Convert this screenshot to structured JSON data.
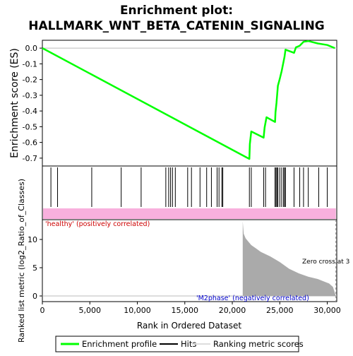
{
  "title_line1": "Enrichment plot:",
  "title_line2": "HALLMARK_WNT_BETA_CATENIN_SIGNALING",
  "colors": {
    "es_line": "#00ff00",
    "hits": "#000000",
    "heat_band": "#f8b0dd",
    "metric_fill": "#aaaaaa",
    "axis": "#000000",
    "zero_line": "#bbbbbb",
    "pos_label": "#cc0000",
    "neg_label": "#0000cc"
  },
  "chart_data": {
    "type": "line",
    "title": "Enrichment plot: HALLMARK_WNT_BETA_CATENIN_SIGNALING",
    "es_panel": {
      "ylabel": "Enrichment score (ES)",
      "ylim": [
        -0.75,
        0.05
      ],
      "yticks": [
        0.0,
        -0.1,
        -0.2,
        -0.3,
        -0.4,
        -0.5,
        -0.6,
        -0.7
      ],
      "ytick_labels": [
        "0.0",
        "-0.1",
        "-0.2",
        "-0.3",
        "-0.4",
        "-0.5",
        "-0.6",
        "-0.7"
      ],
      "grid": false,
      "series": [
        {
          "name": "Enrichment profile",
          "x": [
            0,
            21800,
            21850,
            22000,
            23300,
            23400,
            23600,
            24500,
            24550,
            24650,
            24800,
            25000,
            25200,
            25500,
            25600,
            26500,
            26700,
            27100,
            27500,
            28000,
            29000,
            30000,
            30800
          ],
          "y": [
            0.0,
            -0.705,
            -0.61,
            -0.53,
            -0.57,
            -0.505,
            -0.44,
            -0.47,
            -0.41,
            -0.35,
            -0.24,
            -0.195,
            -0.145,
            -0.055,
            -0.01,
            -0.03,
            0.005,
            0.015,
            0.04,
            0.045,
            0.03,
            0.02,
            0.0
          ]
        }
      ]
    },
    "hits_panel": {
      "series_name": "Hits",
      "positions": [
        900,
        1600,
        5200,
        8300,
        10400,
        13000,
        13300,
        13500,
        13700,
        14000,
        15300,
        15700,
        16600,
        17300,
        17800,
        18400,
        18600,
        18900,
        19000,
        21800,
        22000,
        23300,
        23500,
        24500,
        24600,
        24700,
        24800,
        25000,
        25200,
        25400,
        25500,
        25600,
        26500,
        27100,
        27500,
        28000,
        29100,
        30000
      ]
    },
    "metric_panel": {
      "series_name": "Ranking metric scores",
      "ylabel": "Ranked list metric (log2_Ratio_of_Classes)",
      "xlabel": "Rank in Ordered Dataset",
      "xlim": [
        0,
        31000
      ],
      "xticks": [
        0,
        5000,
        10000,
        15000,
        20000,
        25000,
        30000
      ],
      "xtick_labels": [
        "0",
        "5,000",
        "10,000",
        "15,000",
        "20,000",
        "25,000",
        "30,000"
      ],
      "ylim": [
        -1,
        13.5
      ],
      "yticks": [
        0,
        5,
        10
      ],
      "ytick_labels": [
        "0",
        "5",
        "10"
      ],
      "curve_x": [
        21100,
        21200,
        21400,
        21700,
        22000,
        22500,
        23000,
        24000,
        25000,
        26000,
        27000,
        28000,
        29000,
        29600,
        30200,
        30600,
        30900
      ],
      "curve_y": [
        13.2,
        11.0,
        10.2,
        9.6,
        9.0,
        8.4,
        7.8,
        7.0,
        6.0,
        4.8,
        4.0,
        3.4,
        3.0,
        2.6,
        2.2,
        1.6,
        0.0
      ],
      "zero_cross_label": "Zero cross at 3",
      "zero_cross_x": 30900,
      "pos_label": "'healthy' (positively correlated)",
      "neg_label": "'M2phase' (negatively correlated)"
    },
    "legend": {
      "placement": "bottom",
      "items": [
        "Enrichment profile",
        "Hits",
        "Ranking metric scores"
      ]
    }
  }
}
